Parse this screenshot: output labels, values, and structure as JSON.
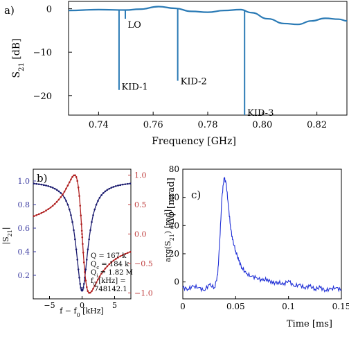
{
  "colors": {
    "panel_a_line": "#2a7ab5",
    "magnitude": "#1a1a6e",
    "magnitude_axis": "#3a3aa0",
    "phase": "#b02020",
    "phase_axis": "#c04040",
    "pulse": "#1f2fd6",
    "axis": "#000000"
  },
  "chart_data": [
    {
      "id": "a",
      "panel_label": "a)",
      "type": "line",
      "xlabel": "Frequency [GHz]",
      "ylabel": "S21 [dB]",
      "xlim": [
        0.729,
        0.831
      ],
      "ylim": [
        -24.5,
        1.7
      ],
      "xticks": [
        0.74,
        0.76,
        0.78,
        0.8,
        0.82
      ],
      "xtick_labels": [
        "0.74",
        "0.76",
        "0.78",
        "0.80",
        "0.82"
      ],
      "yticks": [
        0,
        -10,
        -20
      ],
      "ytick_labels": [
        "0",
        "−10",
        "−20"
      ],
      "baseline": [
        [
          0.729,
          -0.4
        ],
        [
          0.74,
          -0.2
        ],
        [
          0.75,
          -0.3
        ],
        [
          0.755,
          -0.1
        ],
        [
          0.762,
          0.5
        ],
        [
          0.768,
          0.1
        ],
        [
          0.774,
          -0.6
        ],
        [
          0.78,
          -0.8
        ],
        [
          0.786,
          -0.4
        ],
        [
          0.792,
          -0.2
        ],
        [
          0.796,
          -0.9
        ],
        [
          0.802,
          -2.3
        ],
        [
          0.808,
          -3.4
        ],
        [
          0.813,
          -3.6
        ],
        [
          0.818,
          -2.8
        ],
        [
          0.823,
          -2.2
        ],
        [
          0.828,
          -2.4
        ],
        [
          0.831,
          -2.8
        ]
      ],
      "dips": [
        {
          "x": 0.7475,
          "y": -18.7
        },
        {
          "x": 0.7498,
          "y": -2.3
        },
        {
          "x": 0.769,
          "y": -16.6
        },
        {
          "x": 0.7935,
          "y": -24.5
        }
      ],
      "annotations": [
        {
          "text": "LO",
          "x": 0.7502,
          "y": -3.6
        },
        {
          "text": "KID-1",
          "x": 0.7479,
          "y": -17.9
        },
        {
          "text": "KID-2",
          "x": 0.7695,
          "y": -16.6
        },
        {
          "text": "KID-3",
          "x": 0.794,
          "y": -23.9
        }
      ]
    },
    {
      "id": "b",
      "panel_label": "b)",
      "type": "line",
      "xlabel": "f − f0 [kHz]",
      "ylabel_left": "|S21|",
      "ylabel_right": "arg(S21) [rad]",
      "xlim": [
        -7.5,
        7.5
      ],
      "ylim_left": [
        0.0,
        1.1
      ],
      "ylim_right": [
        -1.1,
        1.1
      ],
      "xticks": [
        -5,
        0,
        5
      ],
      "xtick_labels": [
        "−5",
        "0",
        "5"
      ],
      "yticks_left": [
        0.2,
        0.4,
        0.6,
        0.8,
        1.0
      ],
      "ytick_labels_left": [
        "0.2",
        "0.4",
        "0.6",
        "0.8",
        "1.0"
      ],
      "yticks_right": [
        1.0,
        0.5,
        0.0,
        -0.5,
        -1.0
      ],
      "ytick_labels_right": [
        "1.0",
        "0.5",
        "0.0",
        "−0.5",
        "−1.0"
      ],
      "resonance": {
        "f0_offset": 0.0,
        "min_magnitude": 0.07,
        "half_width": 1.15,
        "phase_amplitude": 1.0
      },
      "params": {
        "Q": "Q = 167 k",
        "Qc": "Qc = 184 k",
        "Qi": "Qi = 1.82 M",
        "f0_line1": "f0 [kHz] =",
        "f0_line2": "748142.1"
      }
    },
    {
      "id": "c",
      "panel_label": "c)",
      "type": "line",
      "xlabel": "Time [ms]",
      "ylabel": "Δφ [mrad]",
      "xlim": [
        0,
        0.15
      ],
      "ylim": [
        -12,
        80
      ],
      "xticks": [
        0,
        0.05,
        0.1,
        0.15
      ],
      "xtick_labels": [
        "0",
        "0.05",
        "0.1",
        "0.15"
      ],
      "yticks": [
        0,
        20,
        40,
        60,
        80
      ],
      "ytick_labels": [
        "0",
        "20",
        "40",
        "60",
        "80"
      ],
      "series": [
        {
          "x": [
            0,
            0.005,
            0.01,
            0.015,
            0.02,
            0.025,
            0.03,
            0.033,
            0.035,
            0.037,
            0.039,
            0.041,
            0.043,
            0.045,
            0.047,
            0.05,
            0.053,
            0.056,
            0.06,
            0.065,
            0.07,
            0.075,
            0.08,
            0.085,
            0.09,
            0.095,
            0.1,
            0.105,
            0.11,
            0.115,
            0.12,
            0.125,
            0.13,
            0.135,
            0.14,
            0.145,
            0.15
          ],
          "y": [
            -4,
            -5,
            -3,
            -4,
            -6,
            -2,
            -4,
            5,
            30,
            60,
            74,
            70,
            55,
            40,
            30,
            22,
            15,
            10,
            6,
            4,
            3,
            1,
            2,
            -1,
            0,
            -2,
            1,
            -3,
            -2,
            -4,
            -3,
            -5,
            -4,
            -6,
            -5,
            -4,
            -6
          ]
        }
      ]
    }
  ]
}
